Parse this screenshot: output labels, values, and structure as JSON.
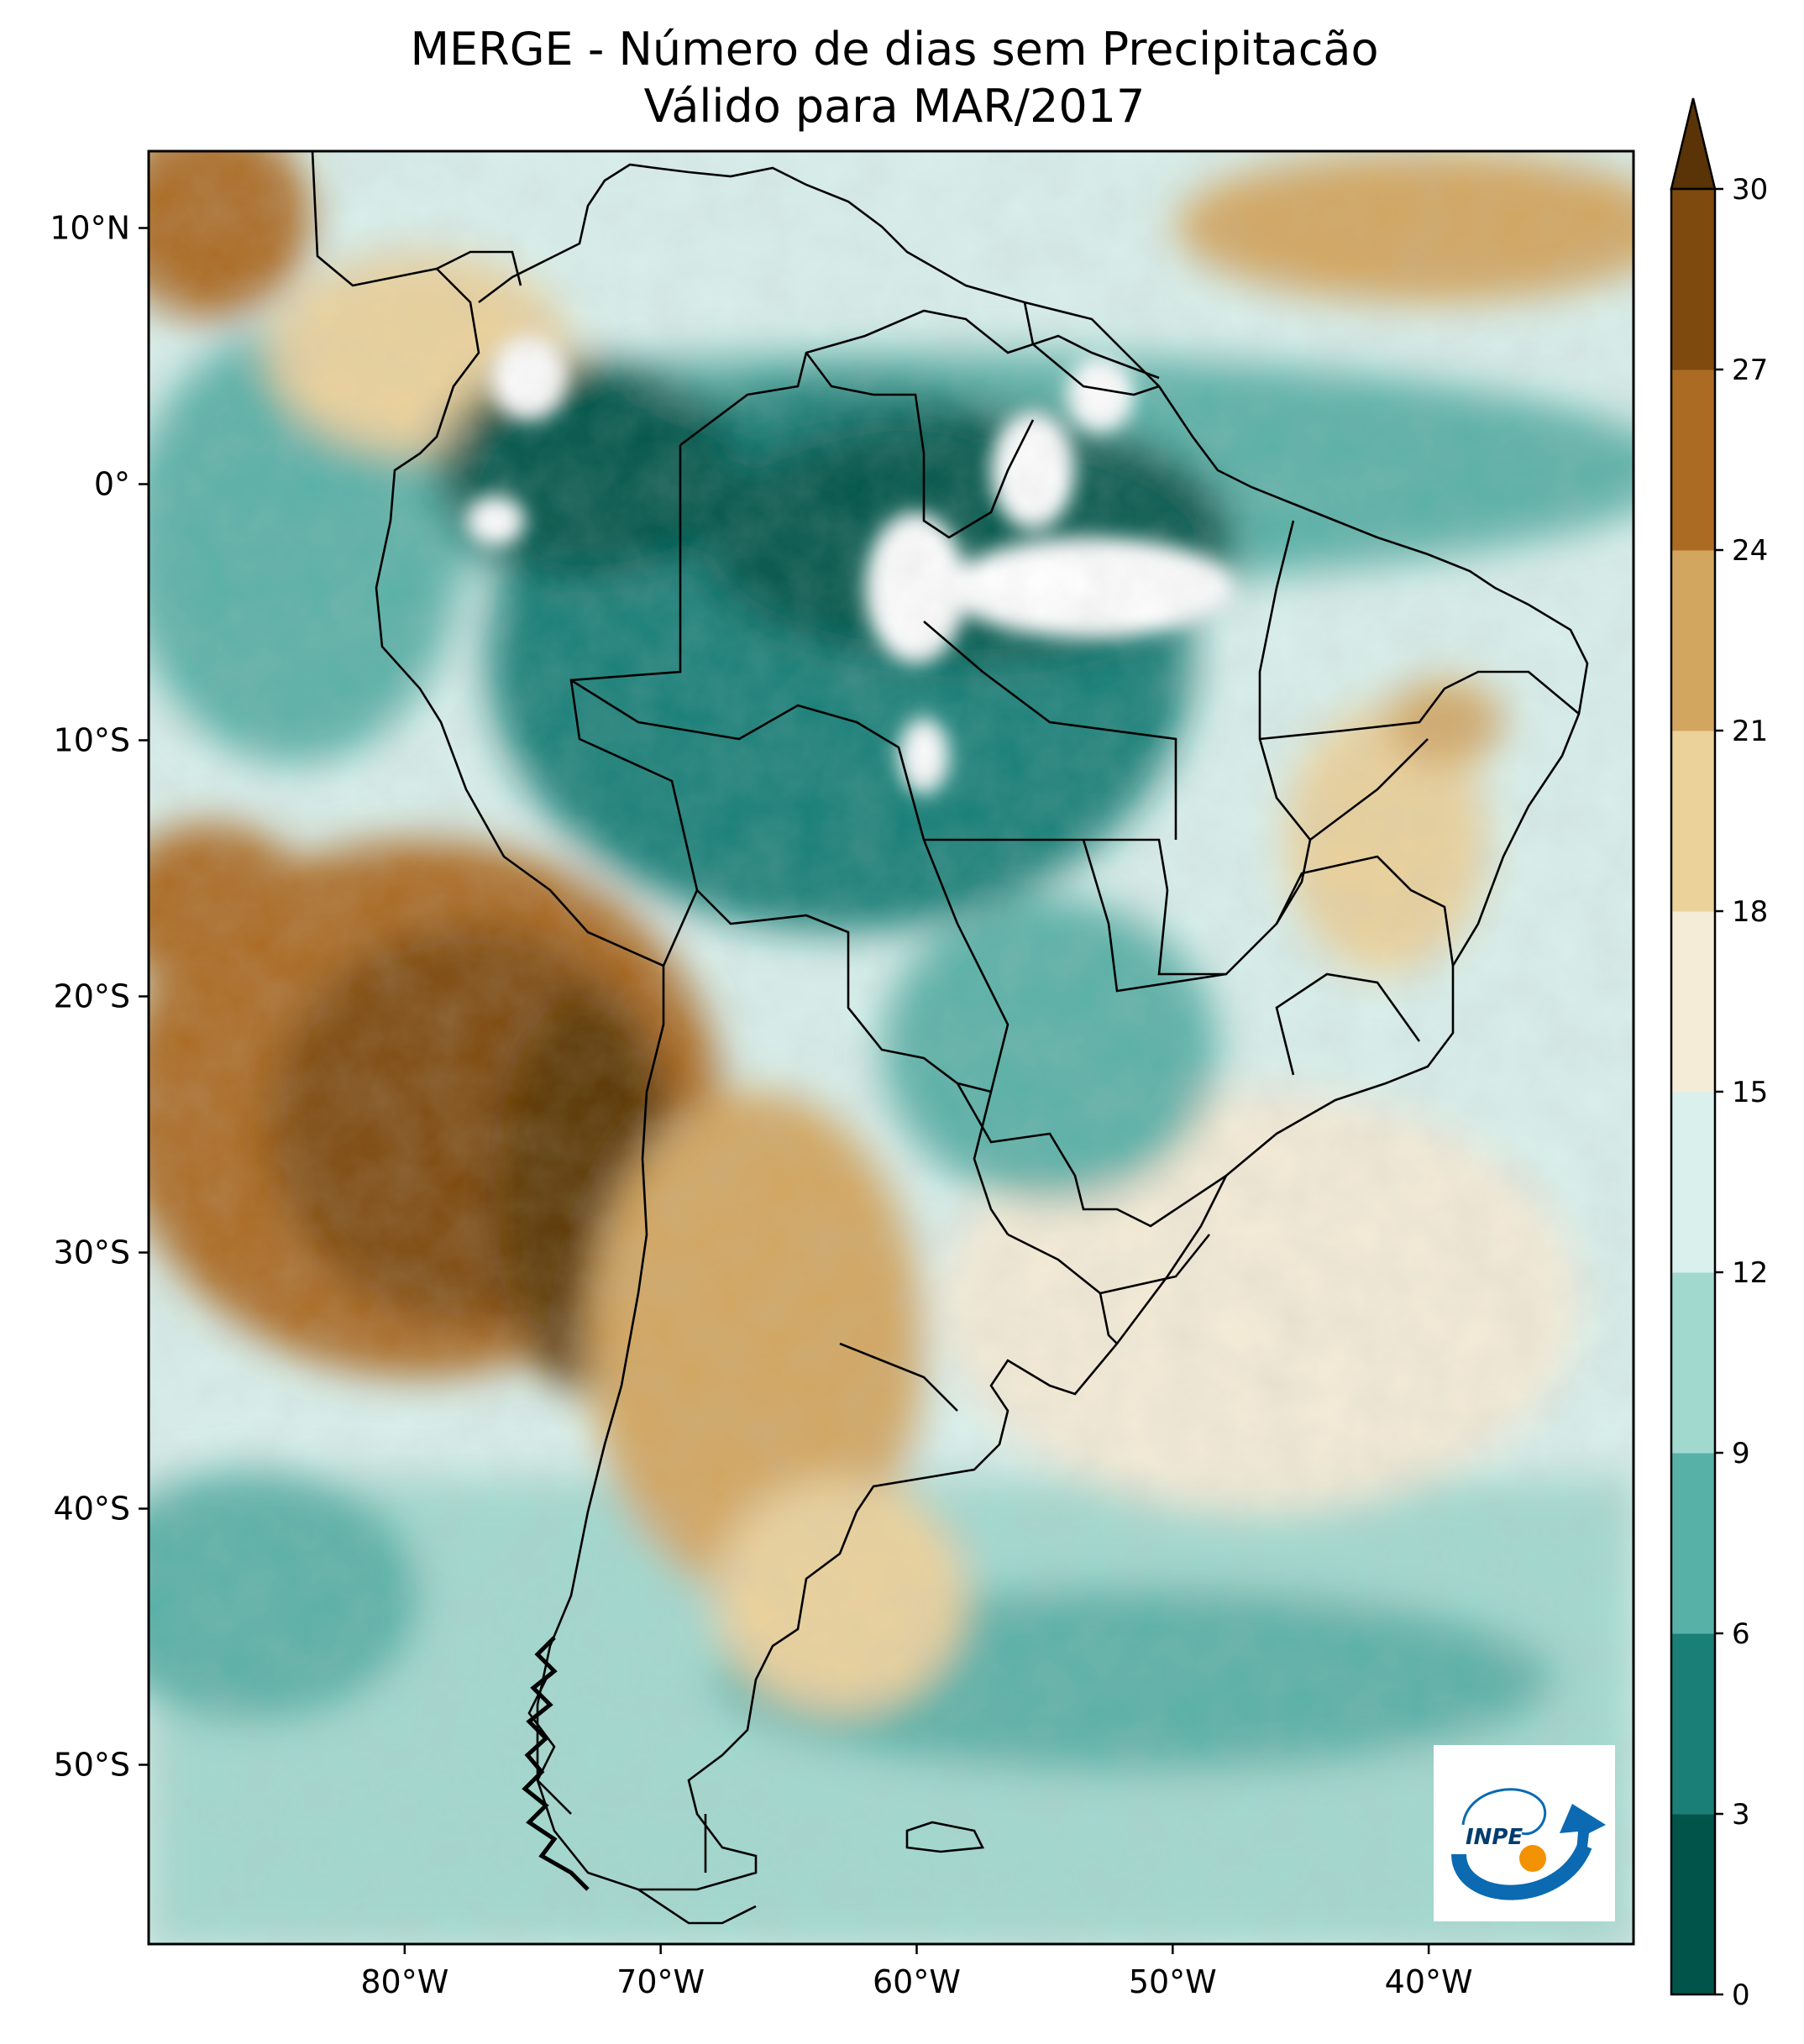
{
  "title": {
    "line1": "MERGE - Número de dias sem Precipitacão",
    "line2": "Válido para MAR/2017"
  },
  "map": {
    "extent": {
      "lon_min": -90,
      "lon_max": -32,
      "lat_min": -57,
      "lat_max": 13
    },
    "lat_ticks": [
      {
        "value": 10,
        "label": "10°N"
      },
      {
        "value": 0,
        "label": "0°"
      },
      {
        "value": -10,
        "label": "10°S"
      },
      {
        "value": -20,
        "label": "20°S"
      },
      {
        "value": -30,
        "label": "30°S"
      },
      {
        "value": -40,
        "label": "40°S"
      },
      {
        "value": -50,
        "label": "50°S"
      }
    ],
    "lon_ticks": [
      {
        "value": -80,
        "label": "80°W"
      },
      {
        "value": -70,
        "label": "70°W"
      },
      {
        "value": -60,
        "label": "60°W"
      },
      {
        "value": -50,
        "label": "50°W"
      },
      {
        "value": -40,
        "label": "40°W"
      }
    ]
  },
  "colorbar": {
    "levels": [
      0,
      3,
      6,
      9,
      12,
      15,
      18,
      21,
      24,
      27,
      30
    ],
    "labels": [
      "0",
      "3",
      "6",
      "9",
      "12",
      "15",
      "18",
      "21",
      "24",
      "27",
      "30"
    ],
    "colors": [
      "#01544a",
      "#197f77",
      "#58b1a7",
      "#a1d9cf",
      "#d9f0ec",
      "#f5ecd7",
      "#ebd29b",
      "#d3a65f",
      "#ac6b22",
      "#7e4a0e",
      "#5a3406"
    ],
    "extend": "max"
  },
  "logo": {
    "text": "INPE"
  }
}
